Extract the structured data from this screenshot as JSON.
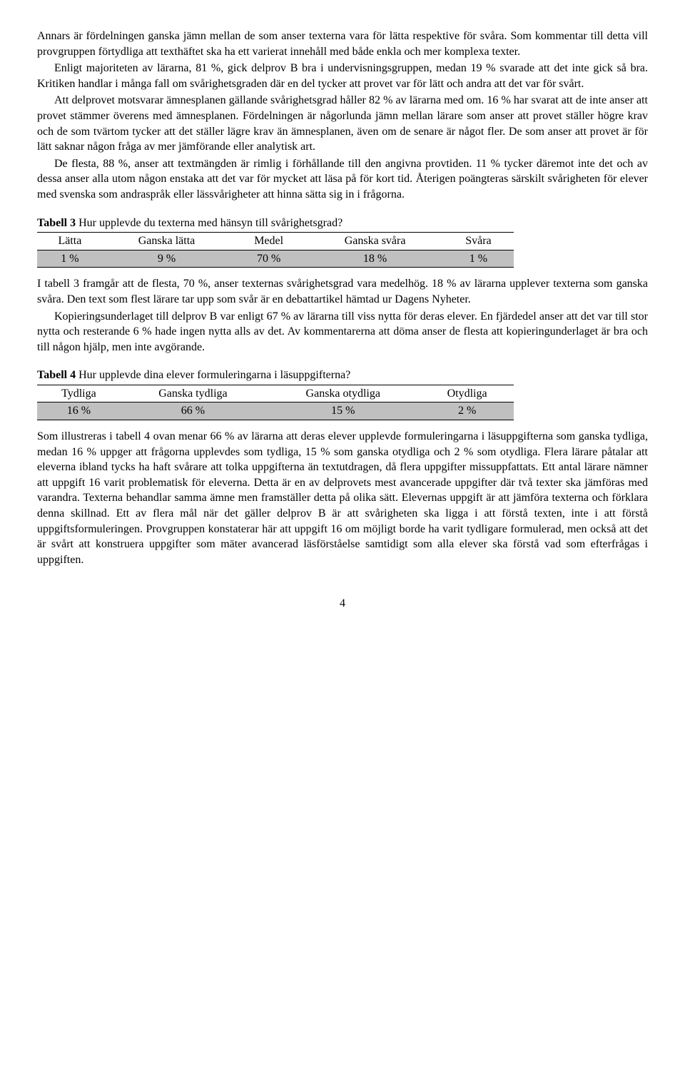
{
  "paragraphs": {
    "p1": "Annars är fördelningen ganska jämn mellan de som anser texterna vara för lätta respektive för svåra. Som kommentar till detta vill provgruppen förtydliga att texthäftet ska ha ett varierat innehåll med både enkla och mer komplexa texter.",
    "p2": "Enligt majoriteten av lärarna, 81 %, gick delprov B bra i undervisningsgruppen, medan 19 % svarade att det inte gick så bra. Kritiken handlar i många fall om svårighetsgraden där en del tycker att provet var för lätt och andra att det var för svårt.",
    "p3": "Att delprovet motsvarar ämnesplanen gällande svårighetsgrad håller 82 % av lärarna med om. 16 % har svarat att de inte anser att provet stämmer överens med ämnesplanen. Fördelningen är någorlunda jämn mellan lärare som anser att provet ställer högre krav och de som tvärtom tycker att det ställer lägre krav än ämnesplanen, även om de senare är något fler. De som anser att provet är för lätt saknar någon fråga av mer jämförande eller analytisk art.",
    "p4": "De flesta, 88 %, anser att textmängden är rimlig i förhållande till den angivna provtiden. 11 % tycker däremot inte det och av dessa anser alla utom någon enstaka att det var för mycket att läsa på för kort tid. Återigen poängteras särskilt svårigheten för elever med svenska som andraspråk eller lässvårigheter att hinna sätta sig in i frågorna.",
    "p5": "I tabell 3 framgår att de flesta, 70 %, anser texternas svårighetsgrad vara medelhög. 18 % av lärarna upplever texterna som ganska svåra. Den text som flest lärare tar upp som svår är en debattartikel hämtad ur Dagens Nyheter.",
    "p6": "Kopieringsunderlaget till delprov B var enligt 67 % av lärarna till viss nytta för deras elever. En fjärdedel anser att det var till stor nytta och resterande 6 % hade ingen nytta alls av det. Av kommentarerna att döma anser de flesta att kopieringunderlaget är bra och till någon hjälp, men inte avgörande.",
    "p7": "Som illustreras i tabell 4 ovan menar 66 % av lärarna att deras elever upplevde formuleringarna i läsuppgifterna som ganska tydliga, medan 16 % uppger att frågorna upplevdes som tydliga, 15 % som ganska otydliga och 2 % som otydliga. Flera lärare påtalar att eleverna ibland tycks ha haft svårare att tolka uppgifterna än textutdragen, då flera uppgifter missuppfattats. Ett antal lärare nämner att uppgift 16 varit problematisk för eleverna. Detta är en av delprovets mest avancerade uppgifter där två texter ska jämföras med varandra. Texterna behandlar samma ämne men framställer detta på olika sätt. Elevernas uppgift är att jämföra texterna och förklara denna skillnad. Ett av flera mål när det gäller delprov B är att svårigheten ska ligga i att förstå texten, inte i att förstå uppgiftsformuleringen. Provgruppen konstaterar här att uppgift 16 om möjligt borde ha varit tydligare formulerad, men också att det är svårt att konstruera uppgifter som mäter avancerad läsförståelse samtidigt som alla elever ska förstå vad som efterfrågas i uppgiften."
  },
  "table3": {
    "label": "Tabell 3",
    "caption": " Hur upplevde du texterna med hänsyn till svårighetsgrad?",
    "columns": [
      "Lätta",
      "Ganska lätta",
      "Medel",
      "Ganska svåra",
      "Svåra"
    ],
    "row": [
      "1 %",
      "9 %",
      "70 %",
      "18 %",
      "1 %"
    ],
    "shaded_bg": "#c0c0c0"
  },
  "table4": {
    "label": "Tabell 4",
    "caption": " Hur upplevde dina elever formuleringarna i läsuppgifterna?",
    "columns": [
      "Tydliga",
      "Ganska tydliga",
      "Ganska otydliga",
      "Otydliga"
    ],
    "row": [
      "16 %",
      "66 %",
      "15 %",
      "2 %"
    ],
    "shaded_bg": "#c0c0c0"
  },
  "page_number": "4"
}
